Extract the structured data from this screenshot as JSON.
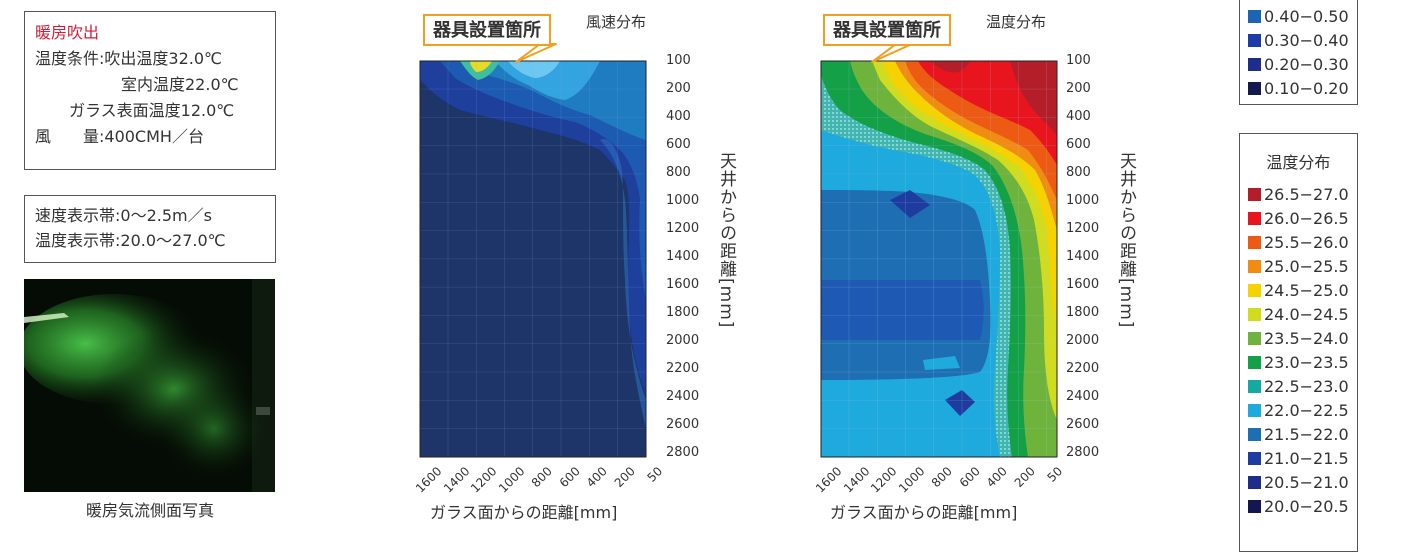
{
  "conditions": {
    "title": "暖房吹出",
    "line1": "温度条件:吹出温度32.0℃",
    "line2": "室内温度22.0℃",
    "line3": "ガラス表面温度12.0℃",
    "line4": "風　　量:400CMH／台"
  },
  "ranges": {
    "velocity": "速度表示帯:0～2.5m／s",
    "temperature": "温度表示帯:20.0～27.0℃"
  },
  "photo": {
    "caption": "暖房気流側面写真"
  },
  "shared": {
    "yticks": [
      "100",
      "200",
      "400",
      "600",
      "800",
      "1000",
      "1200",
      "1400",
      "1600",
      "1800",
      "2000",
      "2200",
      "2400",
      "2600",
      "2800"
    ],
    "xticks": [
      "1600",
      "1400",
      "1200",
      "1000",
      "800",
      "600",
      "400",
      "200",
      "50"
    ],
    "ylabel": "天井からの距離[mm]",
    "xlabel": "ガラス面からの距離[mm]",
    "device_tag": "器具設置箇所"
  },
  "velocity_plot": {
    "title": "風速分布"
  },
  "temperature_plot": {
    "title": "温度分布"
  },
  "velocity_legend": {
    "items": [
      {
        "label": "0.40−0.50",
        "color": "#1c64b4"
      },
      {
        "label": "0.30−0.40",
        "color": "#1e3ca8"
      },
      {
        "label": "0.20−0.30",
        "color": "#1e2c8c"
      },
      {
        "label": "0.10−0.20",
        "color": "#151a4e"
      }
    ]
  },
  "temperature_legend": {
    "title": "温度分布",
    "items": [
      {
        "label": "26.5−27.0",
        "color": "#b41e28"
      },
      {
        "label": "26.0−26.5",
        "color": "#e8141e"
      },
      {
        "label": "25.5−26.0",
        "color": "#ec5a14"
      },
      {
        "label": "25.0−25.5",
        "color": "#f08c14"
      },
      {
        "label": "24.5−25.0",
        "color": "#f5d200"
      },
      {
        "label": "24.0−24.5",
        "color": "#d2dc1e"
      },
      {
        "label": "23.5−24.0",
        "color": "#6eb43c"
      },
      {
        "label": "23.0−23.5",
        "color": "#14a046"
      },
      {
        "label": "22.5−23.0",
        "color": "#14aaa0"
      },
      {
        "label": "22.0−22.5",
        "color": "#1eaadc"
      },
      {
        "label": "21.5−22.0",
        "color": "#1e6eb4"
      },
      {
        "label": "21.0−21.5",
        "color": "#1e3ca0"
      },
      {
        "label": "20.5−21.0",
        "color": "#1e2c8c"
      },
      {
        "label": "20.0−20.5",
        "color": "#141650"
      }
    ]
  }
}
